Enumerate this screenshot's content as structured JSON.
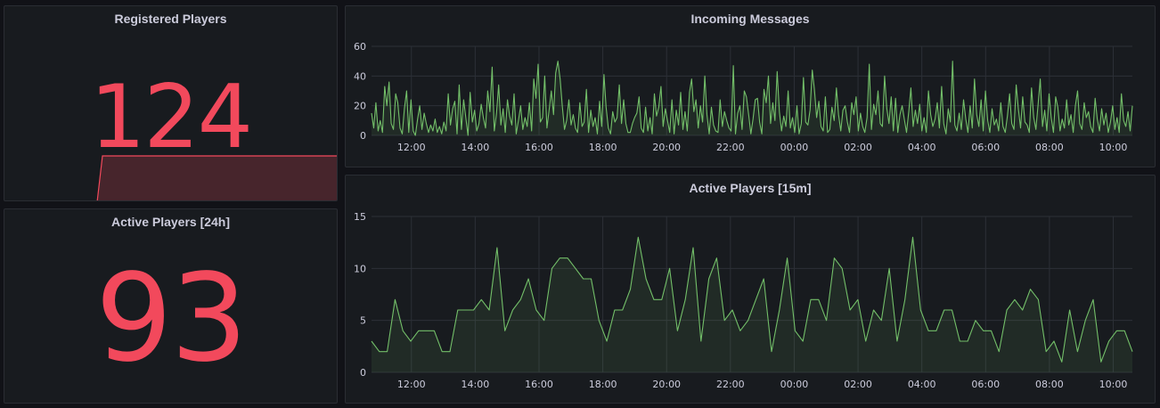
{
  "colors": {
    "background": "#111217",
    "panel": "#181b1f",
    "stat_red": "#f2495c",
    "series_green": "#73bf69",
    "grid": "#2c3037",
    "axis_text": "#ccccdc"
  },
  "panels": {
    "registered_players": {
      "title": "Registered Players",
      "value": "124"
    },
    "active_players_24h": {
      "title": "Active Players [24h]",
      "value": "93"
    },
    "incoming_messages": {
      "title": "Incoming Messages"
    },
    "active_players_15m": {
      "title": "Active Players [15m]"
    }
  },
  "chart_data": [
    {
      "id": "incoming_messages",
      "type": "area",
      "title": "Incoming Messages",
      "xlabel": "",
      "ylabel": "",
      "ylim": [
        0,
        60
      ],
      "yticks": [
        0,
        20,
        40,
        60
      ],
      "xticks": [
        "12:00",
        "14:00",
        "16:00",
        "18:00",
        "20:00",
        "22:00",
        "00:00",
        "02:00",
        "04:00",
        "06:00",
        "08:00",
        "10:00"
      ],
      "xrange_hours": [
        10.75,
        34.6
      ],
      "grid": true,
      "legend": "none",
      "series": [
        {
          "values": [
            15,
            5,
            22,
            3,
            10,
            2,
            33,
            20,
            36,
            8,
            4,
            28,
            22,
            5,
            1,
            18,
            30,
            2,
            24,
            3,
            0,
            11,
            20,
            4,
            15,
            8,
            2,
            7,
            3,
            11,
            2,
            6,
            1,
            9,
            3,
            28,
            7,
            18,
            23,
            1,
            34,
            4,
            24,
            12,
            0,
            29,
            9,
            17,
            3,
            8,
            21,
            12,
            5,
            30,
            16,
            46,
            3,
            15,
            34,
            7,
            18,
            2,
            24,
            13,
            7,
            28,
            1,
            10,
            20,
            4,
            12,
            6,
            22,
            3,
            38,
            25,
            48,
            9,
            12,
            40,
            5,
            17,
            30,
            14,
            42,
            50,
            38,
            20,
            4,
            10,
            24,
            7,
            14,
            5,
            2,
            22,
            6,
            9,
            31,
            2,
            17,
            6,
            12,
            1,
            23,
            6,
            41,
            19,
            5,
            1,
            16,
            9,
            12,
            34,
            8,
            24,
            8,
            2,
            2,
            8,
            12,
            15,
            26,
            5,
            2,
            19,
            3,
            12,
            1,
            28,
            13,
            19,
            33,
            6,
            18,
            10,
            2,
            24,
            1,
            17,
            7,
            29,
            4,
            16,
            3,
            29,
            38,
            16,
            24,
            5,
            20,
            9,
            40,
            14,
            1,
            19,
            7,
            3,
            2,
            24,
            6,
            16,
            10,
            5,
            3,
            47,
            1,
            15,
            20,
            4,
            30,
            26,
            14,
            1,
            11,
            24,
            25,
            9,
            1,
            31,
            22,
            40,
            8,
            22,
            10,
            43,
            16,
            3,
            13,
            6,
            30,
            5,
            12,
            2,
            20,
            1,
            8,
            39,
            9,
            7,
            17,
            44,
            31,
            12,
            23,
            6,
            3,
            26,
            2,
            4,
            19,
            10,
            32,
            14,
            3,
            17,
            20,
            9,
            2,
            22,
            14,
            26,
            3,
            15,
            6,
            2,
            12,
            48,
            4,
            21,
            14,
            30,
            8,
            6,
            40,
            18,
            8,
            26,
            3,
            25,
            2,
            14,
            20,
            11,
            2,
            16,
            32,
            6,
            17,
            8,
            21,
            3,
            12,
            2,
            30,
            14,
            6,
            11,
            22,
            5,
            33,
            8,
            1,
            18,
            9,
            50,
            7,
            3,
            15,
            4,
            24,
            11,
            2,
            20,
            5,
            38,
            14,
            6,
            24,
            3,
            30,
            10,
            2,
            18,
            7,
            11,
            3,
            22,
            6,
            2,
            13,
            28,
            8,
            4,
            34,
            18,
            5,
            26,
            9,
            7,
            2,
            32,
            12,
            4,
            21,
            38,
            6,
            17,
            3,
            28,
            12,
            2,
            26,
            19,
            3,
            11,
            5,
            24,
            7,
            14,
            2,
            20,
            30,
            8,
            4,
            22,
            12,
            16,
            6,
            2,
            25,
            11,
            3,
            18,
            7,
            15,
            2,
            9,
            20,
            4,
            12,
            2,
            28,
            10,
            6,
            16,
            3,
            20
          ]
        }
      ]
    },
    {
      "id": "active_players_15m",
      "type": "area",
      "title": "Active Players [15m]",
      "xlabel": "",
      "ylabel": "",
      "ylim": [
        0,
        15
      ],
      "yticks": [
        0,
        5,
        10,
        15
      ],
      "xticks": [
        "12:00",
        "14:00",
        "16:00",
        "18:00",
        "20:00",
        "22:00",
        "00:00",
        "02:00",
        "04:00",
        "06:00",
        "08:00",
        "10:00"
      ],
      "xrange_hours": [
        10.75,
        34.6
      ],
      "grid": true,
      "legend": "none",
      "series": [
        {
          "values": [
            3,
            2,
            2,
            7,
            4,
            3,
            4,
            4,
            4,
            2,
            2,
            6,
            6,
            6,
            7,
            6,
            12,
            4,
            6,
            7,
            9,
            6,
            5,
            10,
            11,
            11,
            10,
            9,
            9,
            5,
            3,
            6,
            6,
            8,
            13,
            9,
            7,
            7,
            10,
            4,
            7,
            12,
            3,
            9,
            11,
            5,
            6,
            4,
            5,
            7,
            9,
            2,
            6,
            11,
            4,
            3,
            7,
            7,
            5,
            11,
            10,
            6,
            7,
            3,
            6,
            5,
            10,
            3,
            7,
            13,
            6,
            4,
            4,
            6,
            6,
            3,
            3,
            5,
            4,
            4,
            2,
            6,
            7,
            6,
            8,
            7,
            2,
            3,
            1,
            6,
            2,
            5,
            7,
            1,
            3,
            4,
            4,
            2
          ]
        }
      ]
    }
  ]
}
